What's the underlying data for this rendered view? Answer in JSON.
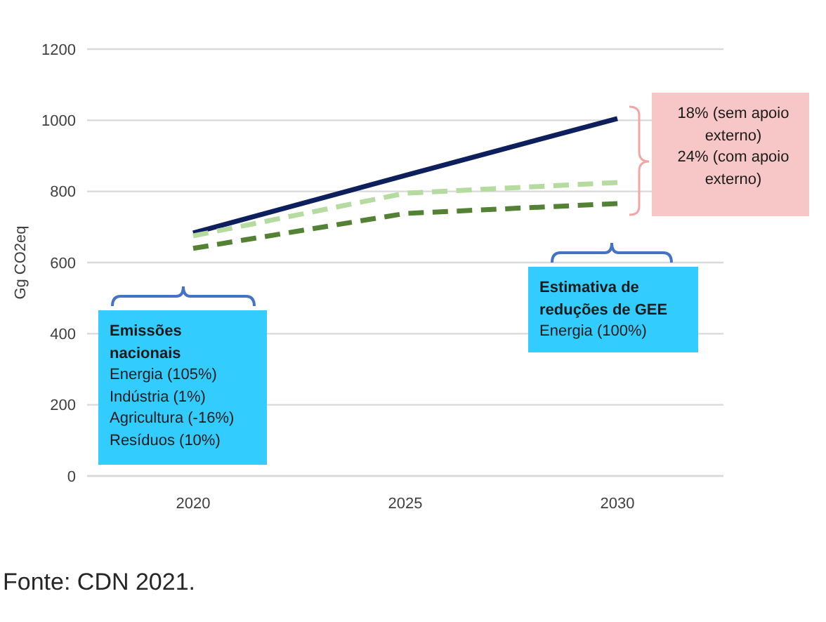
{
  "chart_data": {
    "type": "line",
    "ylabel": "Gg CO2eq",
    "x": [
      2020,
      2025,
      2030
    ],
    "xlim": [
      2017.5,
      2032.5
    ],
    "xticks": [
      2020,
      2025,
      2030
    ],
    "ylim": [
      0,
      1200
    ],
    "yticks": [
      0,
      200,
      400,
      600,
      800,
      1000,
      1200
    ],
    "grid": "y",
    "marker": "none",
    "series": [
      {
        "color": "#0d1f5c",
        "values": [
          683,
          845,
          1005
        ],
        "line_style": "solid"
      },
      {
        "color": "#b5dba0",
        "values": [
          675,
          795,
          825
        ],
        "line_style": "dashed"
      },
      {
        "color": "#548235",
        "values": [
          640,
          738,
          766
        ],
        "line_style": "dashed"
      }
    ],
    "annotations": [
      "Emissões nacionais\nEnergia (105%)\nIndústria (1%)\nAgricultura (-16%)\nResíduos (10%)",
      "Estimativa de reduções de GEE\nEnergia (100%)",
      "18% (sem apoio externo)\n24% (com apoio externo)",
      "Fonte: CDN 2021."
    ]
  }
}
